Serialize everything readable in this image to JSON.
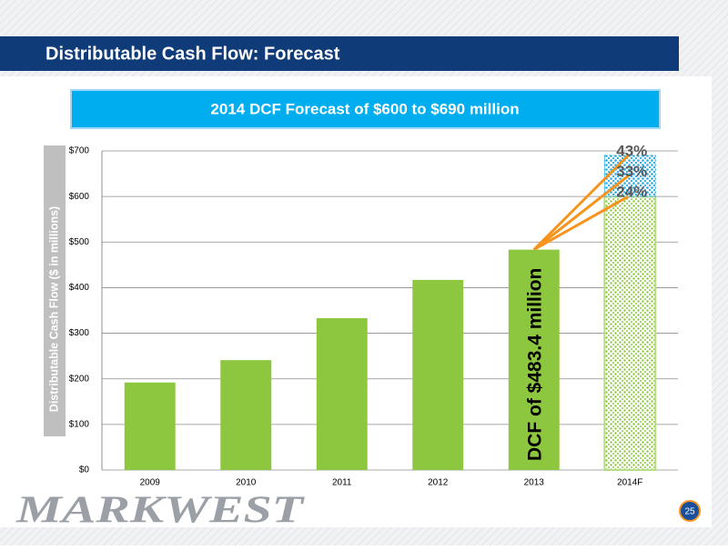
{
  "header": {
    "title": "Distributable Cash Flow: Forecast",
    "banner": "2014 DCF Forecast of $600 to $690 million"
  },
  "chart_data": {
    "type": "bar",
    "ylabel": "Distributable Cash Flow ($ in millions)",
    "categories": [
      "2009",
      "2010",
      "2011",
      "2012",
      "2013",
      "2014F"
    ],
    "values": [
      192,
      241,
      333,
      417,
      483.4,
      600
    ],
    "color": "#8dc63f",
    "forecast_range": {
      "low": 600,
      "high": 690,
      "color": "#29abe2"
    },
    "ylim": [
      0,
      700
    ],
    "yticks": [
      {
        "value": 0,
        "label": "$0"
      },
      {
        "value": 100,
        "label": "$100"
      },
      {
        "value": 200,
        "label": "$200"
      },
      {
        "value": 300,
        "label": "$300"
      },
      {
        "value": 400,
        "label": "$400"
      },
      {
        "value": 500,
        "label": "$500"
      },
      {
        "value": 600,
        "label": "$600"
      },
      {
        "value": 700,
        "label": "$700"
      }
    ],
    "grid": true,
    "annotation": "DCF of $483.4 million",
    "growth_labels": [
      {
        "label": "43%",
        "value": 690
      },
      {
        "label": "33%",
        "value": 645
      },
      {
        "label": "24%",
        "value": 600
      }
    ]
  },
  "footer": {
    "logo": "MARKWEST",
    "page": "25"
  }
}
